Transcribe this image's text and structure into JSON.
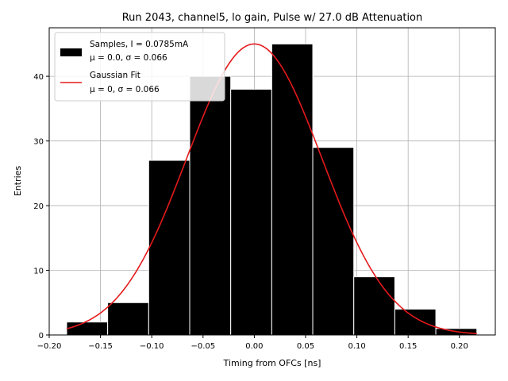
{
  "chart_data": {
    "type": "bar",
    "title": "Run 2043, channel5, lo gain, Pulse w/ 27.0 dB Attenuation",
    "xlabel": "Timing from OFCs [ns]",
    "ylabel": "Entries",
    "xlim": [
      -0.2,
      0.235
    ],
    "ylim": [
      0,
      47.5
    ],
    "xticks": [
      -0.2,
      -0.15,
      -0.1,
      -0.05,
      0.0,
      0.05,
      0.1,
      0.15,
      0.2
    ],
    "xtick_labels": [
      "−0.20",
      "−0.15",
      "−0.10",
      "−0.05",
      "0.00",
      "0.05",
      "0.10",
      "0.15",
      "0.20"
    ],
    "yticks": [
      0,
      10,
      20,
      30,
      40
    ],
    "ytick_labels": [
      "0",
      "10",
      "20",
      "30",
      "40"
    ],
    "grid": true,
    "legend_position": "top-left",
    "histogram": {
      "name": "Samples, I = 0.0785mA",
      "name_line2": "μ = 0.0, σ = 0.066",
      "color": "#000000",
      "edge_color": "#ffffff",
      "bin_edges": [
        -0.183,
        -0.143,
        -0.103,
        -0.063,
        -0.023,
        0.017,
        0.057,
        0.097,
        0.137,
        0.177,
        0.217
      ],
      "counts": [
        2,
        5,
        27,
        40,
        38,
        45,
        29,
        9,
        4,
        1
      ]
    },
    "fit": {
      "name": "Gaussian Fit",
      "name_line2": "μ = 0, σ = 0.066",
      "color": "#e41a1c",
      "mu": 0.0,
      "sigma": 0.066,
      "amplitude": 45.0,
      "x_range": [
        -0.183,
        0.217
      ]
    }
  }
}
